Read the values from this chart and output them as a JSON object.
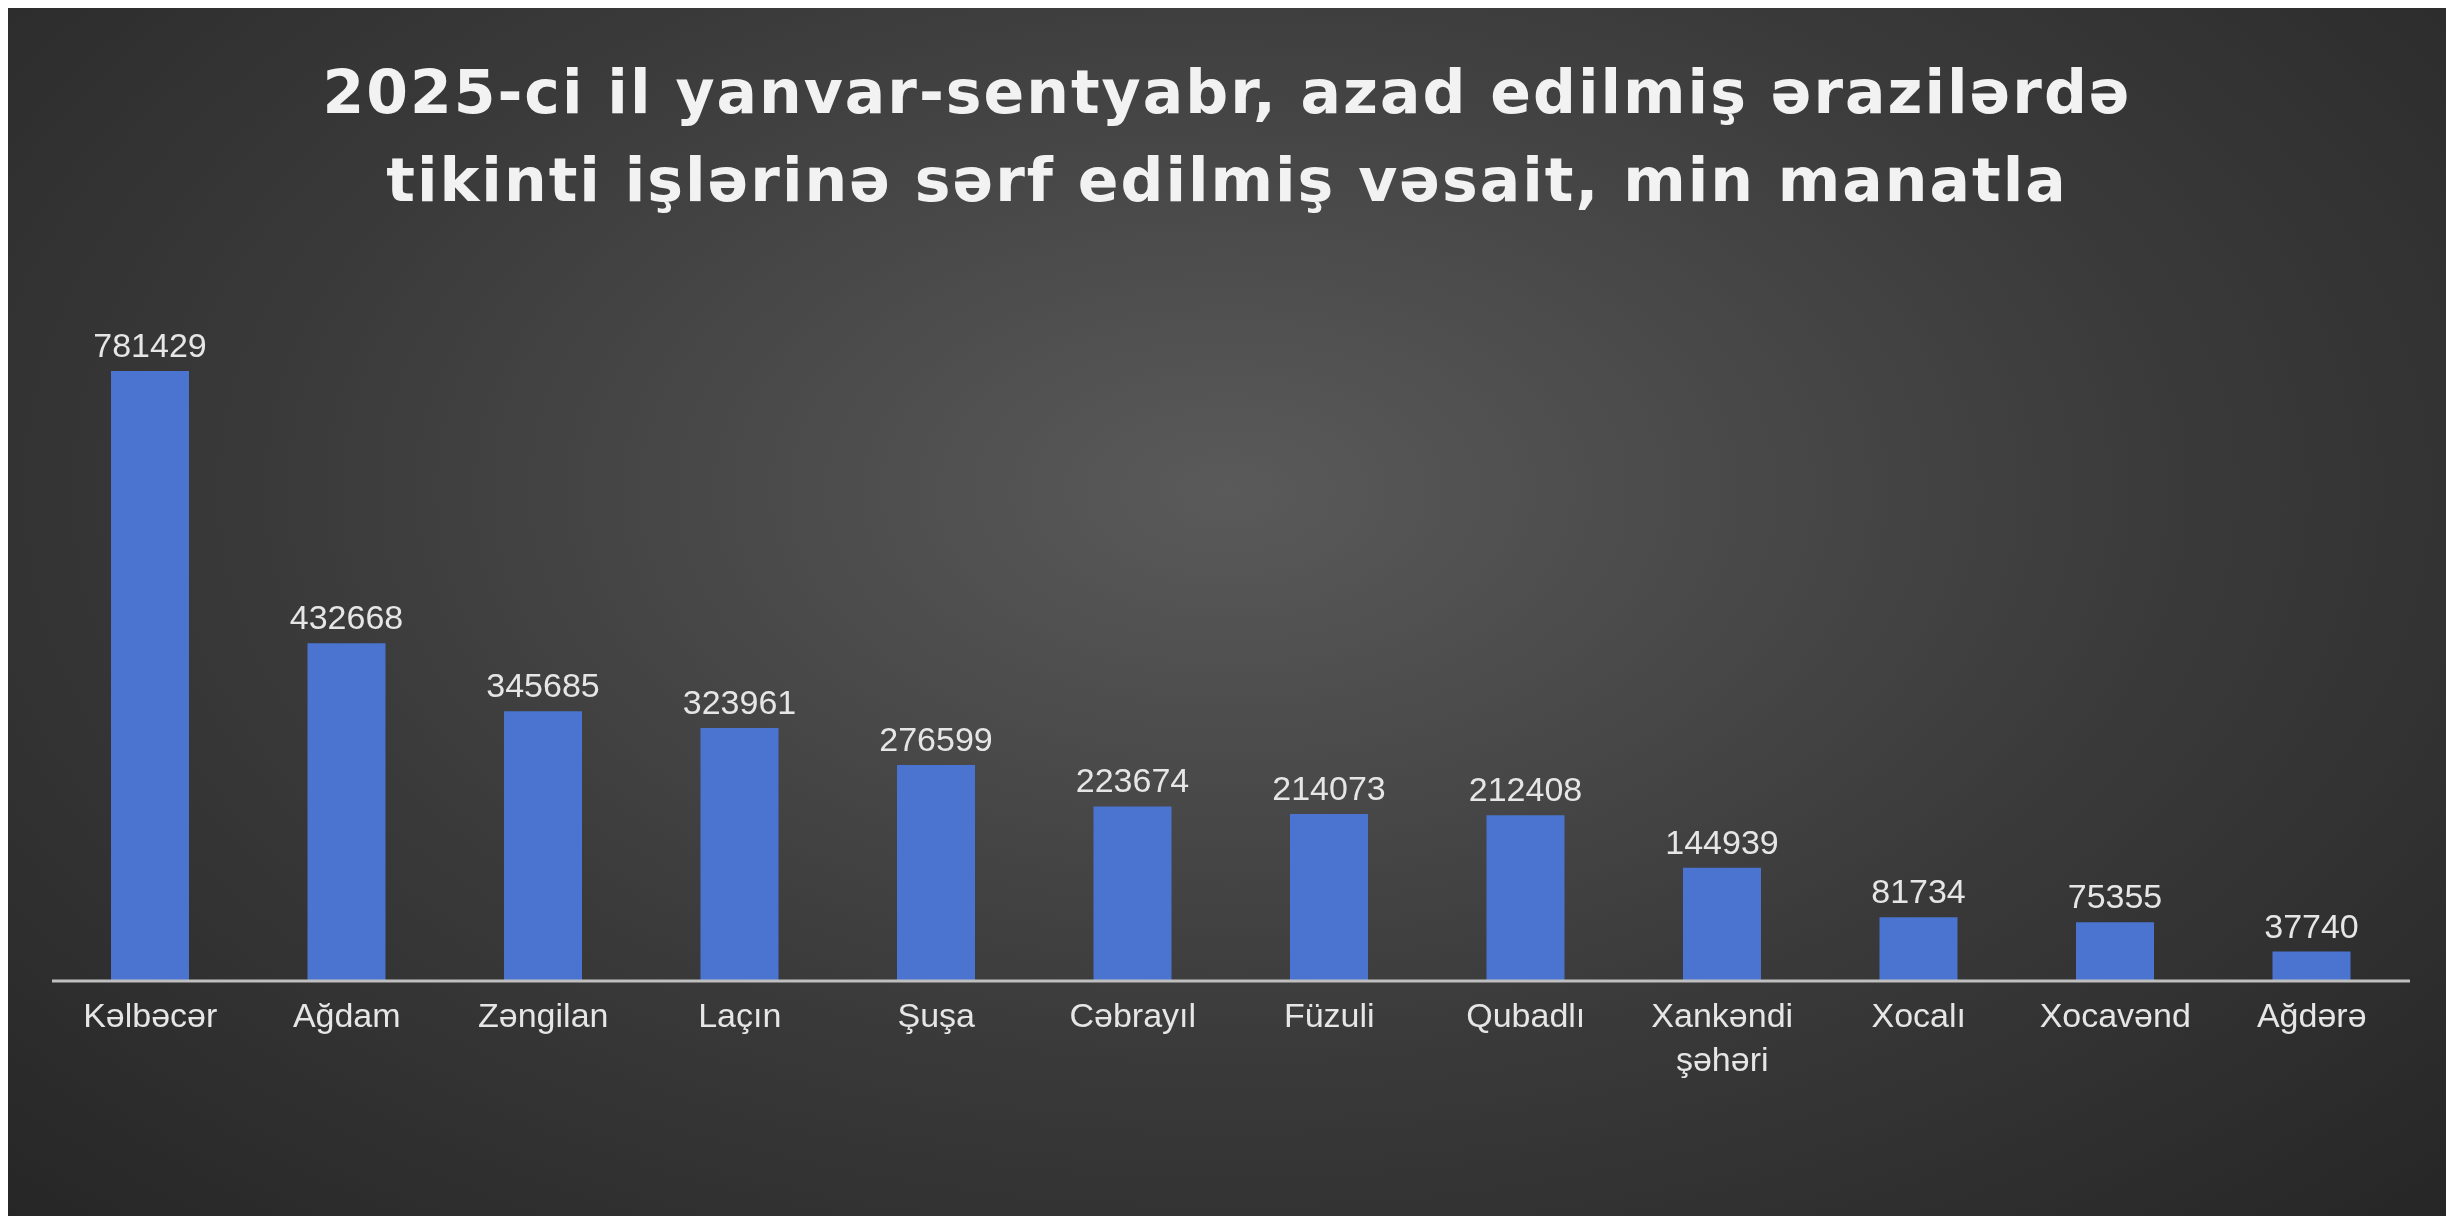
{
  "chart_data": {
    "type": "bar",
    "title": "2025-ci il yanvar-sentyabr, azad edilmiş ərazilərdə tikinti işlərinə sərf edilmiş vəsait, min manatla",
    "categories": [
      "Kəlbəcər",
      "Ağdam",
      "Zəngilan",
      "Laçın",
      "Şuşa",
      "Cəbrayıl",
      "Füzuli",
      "Qubadlı",
      "Xankəndi şəhəri",
      "Xocalı",
      "Xocavənd",
      "Ağdərə"
    ],
    "values": [
      781429,
      432668,
      345685,
      323961,
      276599,
      223674,
      214073,
      212408,
      144939,
      81734,
      75355,
      37740
    ],
    "color": "#4a74cf",
    "data_labels": true
  }
}
